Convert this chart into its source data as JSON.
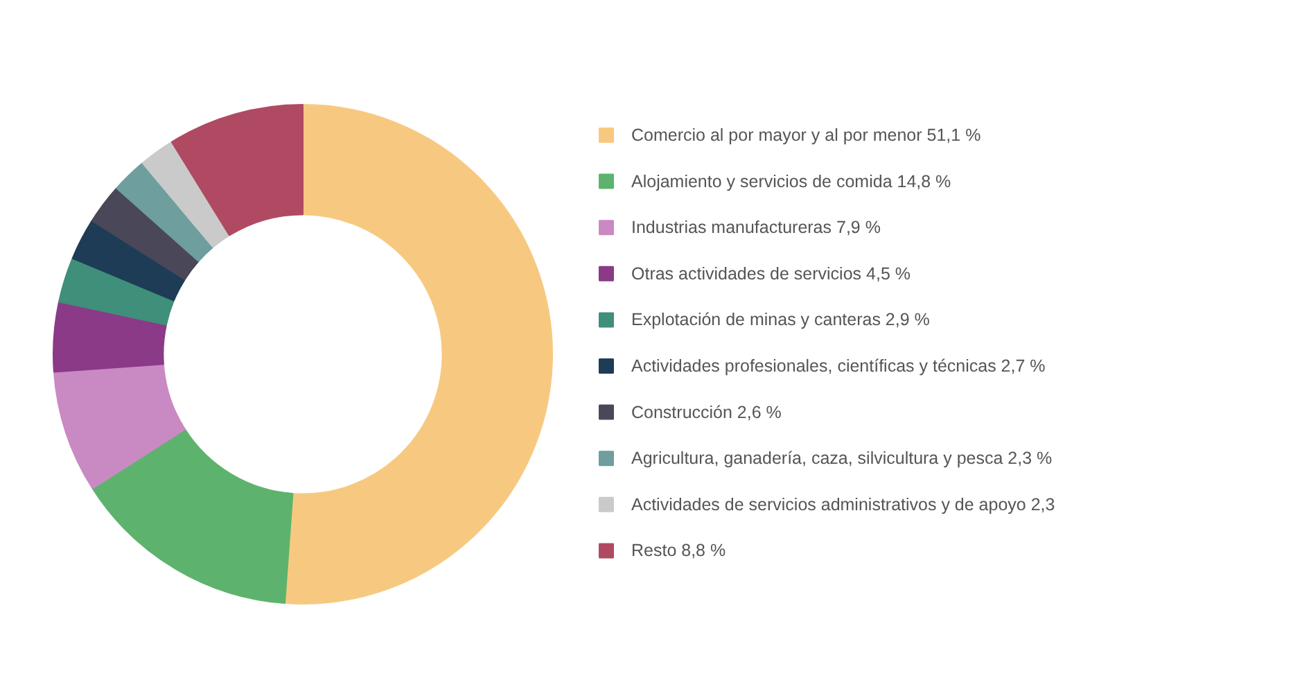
{
  "chart_data": {
    "type": "donut",
    "categories": [
      "Comercio al por mayor y al por menor",
      "Alojamiento y servicios de comida",
      "Industrias manufactureras",
      "Otras actividades de servicios",
      "Explotación de minas y canteras",
      "Actividades profesionales, científicas y técnicas",
      "Construcción",
      "Agricultura, ganadería, caza, silvicultura y pesca",
      "Actividades de servicios administrativos y de apoyo",
      "Resto"
    ],
    "values": [
      51.1,
      14.8,
      7.9,
      4.5,
      2.9,
      2.7,
      2.6,
      2.3,
      2.3,
      8.8
    ],
    "value_labels": [
      "51,1 %",
      "14,8 %",
      "7,9 %",
      "4,5 %",
      "2,9 %",
      "2,7 %",
      "2,6 %",
      "2,3 %",
      "2,3",
      "8,8 %"
    ],
    "colors": [
      "#f7c980",
      "#5db36e",
      "#c98ac4",
      "#8a3a87",
      "#3f8f7a",
      "#1e3c56",
      "#4a4858",
      "#6e9e9e",
      "#cacaca",
      "#b04a62"
    ],
    "legend": "right"
  }
}
